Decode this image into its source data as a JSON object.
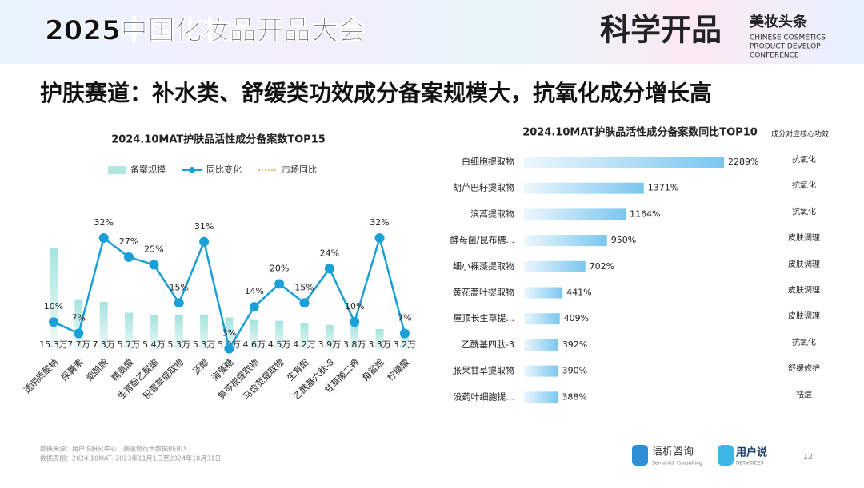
{
  "header": {
    "event": "2025中国化妆品开品大会",
    "brand": "科学开品",
    "logo": "美妆头条",
    "logo_lines": [
      "CHINESE COSMETICS",
      "PRODUCT DEVELOP",
      "CONFERENCE"
    ]
  },
  "slide_title": "护肤赛道：补水类、舒缓类功效成分备案规模大，抗氧化成分增长高",
  "chart_data": [
    {
      "type": "combo",
      "title": "2024.10MAT护肤品活性成分备案数TOP15",
      "categories": [
        "透明质酸钠",
        "尿囊素",
        "烟酰胺",
        "精氨酸",
        "生育酚乙酸酯",
        "积雪草提取物",
        "泛醇",
        "海藻糖",
        "黄芩根提取物",
        "马齿苋提取物",
        "生育酚",
        "乙酰基六肽-8",
        "甘草酸二钾",
        "角鲨烷",
        "柠檬酸"
      ],
      "series": [
        {
          "name": "备案规模",
          "color": "#7fd8cf",
          "values": [
            15.3,
            7.7,
            7.3,
            5.7,
            5.4,
            5.3,
            5.3,
            5.0,
            4.6,
            4.5,
            4.2,
            3.9,
            3.8,
            3.3,
            3.2
          ],
          "value_labels": [
            "15.3万",
            "7.7万",
            "7.3万",
            "5.7万",
            "5.4万",
            "5.3万",
            "5.3万",
            "5.0万",
            "4.6万",
            "4.5万",
            "4.2万",
            "3.9万",
            "3.8万",
            "3.3万",
            "3.2万"
          ]
        },
        {
          "name": "同比变化",
          "color": "#1a9fd6",
          "values": [
            10,
            7,
            32,
            27,
            25,
            15,
            31,
            3,
            14,
            20,
            15,
            24,
            10,
            32,
            7
          ],
          "value_labels": [
            "10%",
            "7%",
            "32%",
            "27%",
            "25%",
            "15%",
            "31%",
            "3%",
            "14%",
            "20%",
            "15%",
            "24%",
            "10%",
            "32%",
            "7%"
          ]
        },
        {
          "name": "市场同比",
          "color": "#c9b458"
        }
      ]
    },
    {
      "type": "barh",
      "title": "2024.10MAT护肤品活性成分备案数同比TOP10",
      "color": "#6cc0ee",
      "column_title": "成分对应核心功效",
      "categories": [
        "白细胞提取物",
        "胡芦巴籽提取物",
        "滨蒿提取物",
        "酵母菌/昆布糖...",
        "细小裸藻提取物",
        "黄花蒿叶提取物",
        "屋顶长生草提...",
        "乙酰基四肽-3",
        "胀果甘草提取物",
        "没药叶细胞提..."
      ],
      "values": [
        2289,
        1371,
        1164,
        950,
        702,
        441,
        409,
        392,
        390,
        388
      ],
      "value_labels": [
        "2289%",
        "1371%",
        "1164%",
        "950%",
        "702%",
        "441%",
        "409%",
        "392%",
        "390%",
        "388%"
      ],
      "effects": [
        "抗氧化",
        "抗氧化",
        "抗氧化",
        "皮肤调理",
        "皮肤调理",
        "皮肤调理",
        "皮肤调理",
        "抗氧化",
        "舒缓修护",
        "祛痘"
      ]
    }
  ],
  "footer": {
    "source": "数据来源：用户说研究中心、美丽修行大数据BEBD",
    "period": "数据周期：2024.10MAT: 2023年11月1日至2024年10月31日",
    "logo1": "语析咨询",
    "logo1_sub": "SemantiX Consulting",
    "logo2": "用户说",
    "logo2_sub": "NETVOICES",
    "page": "12"
  }
}
